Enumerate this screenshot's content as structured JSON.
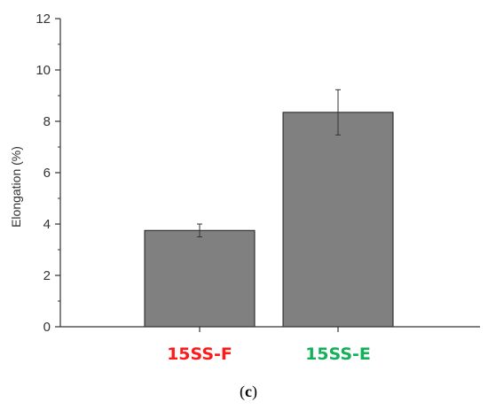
{
  "chart_data": {
    "type": "bar",
    "title": "",
    "xlabel": "",
    "ylabel": "Elongation (%)",
    "ylim": [
      0,
      12
    ],
    "yticks": [
      0,
      2,
      4,
      6,
      8,
      10,
      12
    ],
    "grid": false,
    "categories": [
      "15SS-F",
      "15SS-E"
    ],
    "category_colors": [
      "#ff1a1a",
      "#13b05a"
    ],
    "values": [
      3.75,
      8.35
    ],
    "errors": [
      0.25,
      0.88
    ],
    "bar_color": "#808080",
    "bar_edge_color": "#1a1a1a"
  },
  "panel_label": {
    "open": "(",
    "letter": "c",
    "close": ")"
  }
}
